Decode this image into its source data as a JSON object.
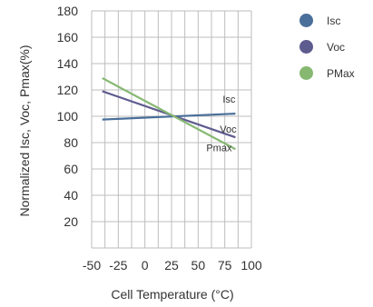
{
  "chart_data": {
    "type": "line",
    "xlabel": "Cell Temperature (°C)",
    "ylabel": "Normalized Isc, Voc, Pmax(%)",
    "xlim": [
      -50,
      100
    ],
    "ylim": [
      0,
      180
    ],
    "xticks": [
      -50,
      -25,
      0,
      25,
      50,
      75,
      100
    ],
    "yticks": [
      20,
      40,
      60,
      80,
      100,
      120,
      140,
      160,
      180
    ],
    "grid": true,
    "legend_position": "top-right",
    "series": [
      {
        "name": "Isc",
        "color": "#4a6f9a",
        "points": [
          [
            -40,
            97.5
          ],
          [
            85,
            102
          ]
        ],
        "end_label": "Isc"
      },
      {
        "name": "Voc",
        "color": "#5e5b8f",
        "points": [
          [
            -40,
            119
          ],
          [
            85,
            84
          ]
        ],
        "end_label": "Voc"
      },
      {
        "name": "PMax",
        "color": "#86b872",
        "points": [
          [
            -40,
            129
          ],
          [
            85,
            75
          ]
        ],
        "end_label": "Pmax"
      }
    ]
  }
}
